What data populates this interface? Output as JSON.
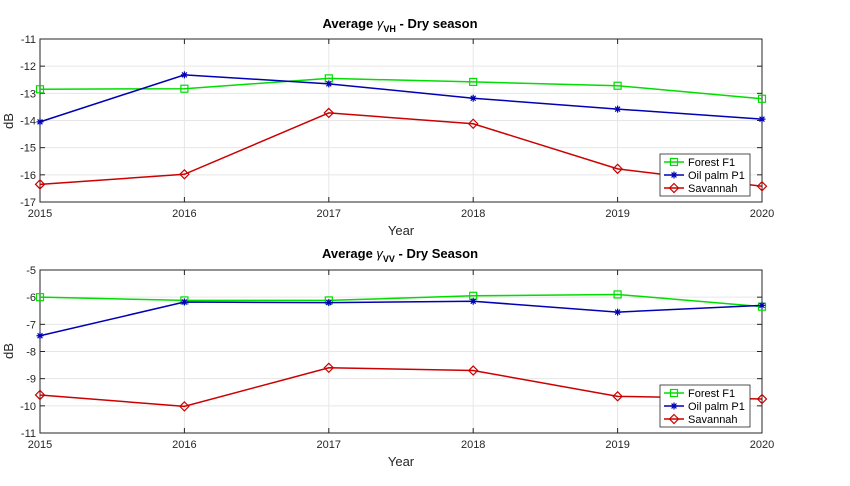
{
  "chart_data": [
    {
      "type": "line",
      "title_prefix": "Average ",
      "title_symbol": "γ",
      "title_subscript": "VH",
      "title_suffix": "  -  Dry season",
      "xlabel": "Year",
      "ylabel": "dB",
      "x": [
        2015,
        2016,
        2017,
        2018,
        2019,
        2020
      ],
      "xlim": [
        2015,
        2020
      ],
      "ylim": [
        -17,
        -11
      ],
      "yticks": [
        -11,
        -12,
        -13,
        -14,
        -15,
        -16,
        -17
      ],
      "grid": true,
      "legend_position": "bottom-right",
      "series": [
        {
          "name": "Forest F1",
          "color": "#00dd00",
          "marker": "square",
          "values": [
            -12.85,
            -12.83,
            -12.45,
            -12.58,
            -12.72,
            -13.2
          ]
        },
        {
          "name": "Oil palm P1",
          "color": "#0000b4",
          "marker": "asterisk",
          "values": [
            -14.05,
            -12.32,
            -12.65,
            -13.18,
            -13.58,
            -13.95
          ]
        },
        {
          "name": "Savannah",
          "color": "#cc0000",
          "marker": "diamond",
          "values": [
            -16.35,
            -15.98,
            -13.72,
            -14.12,
            -15.78,
            -16.42
          ]
        }
      ]
    },
    {
      "type": "line",
      "title_prefix": "Average ",
      "title_symbol": "γ",
      "title_subscript": "VV",
      "title_suffix": "  -  Dry Season",
      "xlabel": "Year",
      "ylabel": "dB",
      "x": [
        2015,
        2016,
        2017,
        2018,
        2019,
        2020
      ],
      "xlim": [
        2015,
        2020
      ],
      "ylim": [
        -11,
        -5
      ],
      "yticks": [
        -5,
        -6,
        -7,
        -8,
        -9,
        -10,
        -11
      ],
      "grid": true,
      "legend_position": "bottom-right",
      "series": [
        {
          "name": "Forest F1",
          "color": "#00dd00",
          "marker": "square",
          "values": [
            -6.0,
            -6.12,
            -6.12,
            -5.95,
            -5.9,
            -6.35
          ]
        },
        {
          "name": "Oil palm P1",
          "color": "#0000b4",
          "marker": "asterisk",
          "values": [
            -7.42,
            -6.18,
            -6.2,
            -6.15,
            -6.55,
            -6.3
          ]
        },
        {
          "name": "Savannah",
          "color": "#cc0000",
          "marker": "diamond",
          "values": [
            -9.6,
            -10.02,
            -8.6,
            -8.7,
            -9.65,
            -9.75
          ]
        }
      ]
    }
  ]
}
